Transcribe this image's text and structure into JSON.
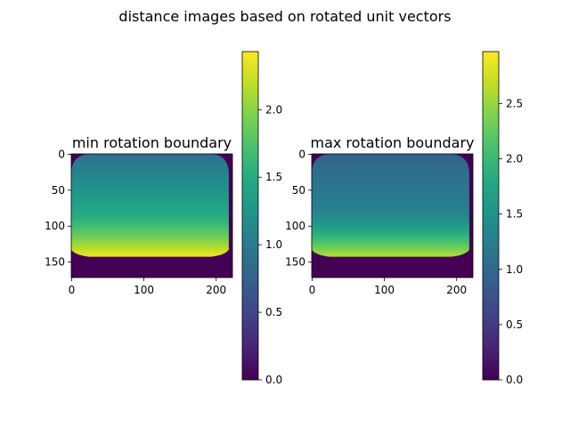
{
  "figure": {
    "suptitle": "distance images based on rotated unit vectors"
  },
  "chart_data": [
    {
      "type": "heatmap",
      "title": "min rotation boundary",
      "image_width": 223,
      "image_height": 172,
      "xticks": [
        0,
        100,
        200
      ],
      "xtick_labels": [
        "0",
        "100",
        "200"
      ],
      "yticks": [
        0,
        50,
        100,
        150
      ],
      "ytick_labels": [
        "0",
        "50",
        "100",
        "150"
      ],
      "colormap": "viridis",
      "colorbar": {
        "vmin": 0.0,
        "vmax": 2.43,
        "ticks": [
          0.0,
          0.5,
          1.0,
          1.5,
          2.0
        ],
        "tick_labels": [
          "0.0",
          "0.5",
          "1.0",
          "1.5",
          "2.0"
        ]
      },
      "regions": {
        "background_value": 0.0,
        "valid_region_rows": [
          0,
          143
        ],
        "valid_region_cols": [
          0,
          218
        ],
        "value_top_center": 0.9,
        "value_mid": 1.45,
        "value_bottom": 2.35
      }
    },
    {
      "type": "heatmap",
      "title": "max rotation boundary",
      "image_width": 223,
      "image_height": 172,
      "xticks": [
        0,
        100,
        200
      ],
      "xtick_labels": [
        "0",
        "100",
        "200"
      ],
      "yticks": [
        0,
        50,
        100,
        150
      ],
      "ytick_labels": [
        "0",
        "50",
        "100",
        "150"
      ],
      "colormap": "viridis",
      "colorbar": {
        "vmin": 0.0,
        "vmax": 2.97,
        "ticks": [
          0.0,
          0.5,
          1.0,
          1.5,
          2.0,
          2.5
        ],
        "tick_labels": [
          "0.0",
          "0.5",
          "1.0",
          "1.5",
          "2.0",
          "2.5"
        ]
      },
      "regions": {
        "background_value": 0.0,
        "valid_region_rows": [
          0,
          143
        ],
        "valid_region_cols": [
          0,
          218
        ],
        "value_top_center": 0.95,
        "value_mid": 1.3,
        "value_bottom": 2.6
      }
    }
  ]
}
